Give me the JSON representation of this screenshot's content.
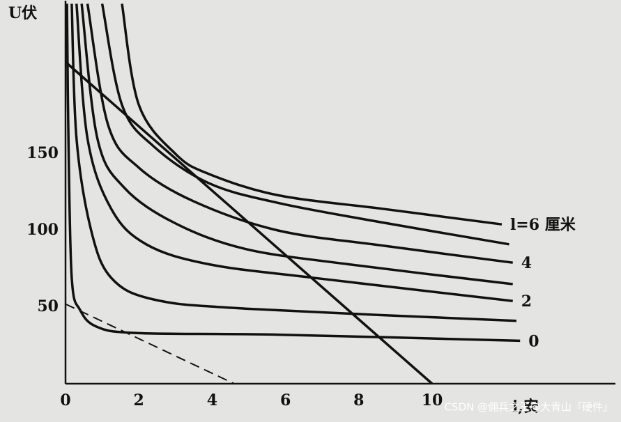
{
  "chart_data": {
    "type": "line",
    "y_label": "U伏",
    "x_label": "i,安",
    "watermark": "CSDN @佣兵之王@大青山『硬件』",
    "xlim": [
      0,
      15
    ],
    "ylim": [
      0,
      250
    ],
    "xticks": [
      0,
      2,
      4,
      6,
      8,
      10
    ],
    "yticks": [
      50,
      100,
      150
    ],
    "grid": false,
    "color": "#111111",
    "series": [
      {
        "name": "0",
        "color": "#111111",
        "x": [
          0.04,
          0.08,
          0.17,
          0.4,
          0.87,
          2.0,
          5.8,
          12.4
        ],
        "values": [
          248,
          160,
          69,
          48,
          37,
          33,
          32,
          28
        ]
      },
      {
        "color": "#111111",
        "x": [
          0.17,
          0.3,
          0.7,
          1.25,
          2.4,
          4.9,
          12.3
        ],
        "values": [
          248,
          160,
          100,
          69,
          55,
          49,
          41
        ]
      },
      {
        "name": "2",
        "color": "#111111",
        "x": [
          0.3,
          0.6,
          1.25,
          2.2,
          3.9,
          6.8,
          12.2
        ],
        "values": [
          248,
          160,
          114,
          91,
          78,
          69,
          54
        ]
      },
      {
        "color": "#111111",
        "x": [
          0.44,
          0.87,
          1.6,
          2.97,
          4.9,
          7.7,
          12.2
        ],
        "values": [
          248,
          160,
          128,
          105,
          88,
          78,
          65
        ]
      },
      {
        "name": "4",
        "color": "#111111",
        "x": [
          0.6,
          1.16,
          2.0,
          3.5,
          5.8,
          8.7,
          12.2
        ],
        "values": [
          248,
          169,
          141,
          119,
          100,
          90,
          79
        ]
      },
      {
        "color": "#111111",
        "x": [
          1.0,
          1.54,
          2.4,
          3.9,
          5.8,
          8.7,
          12.1
        ],
        "values": [
          248,
          182,
          155,
          131,
          118,
          105,
          91
        ]
      },
      {
        "name": "l=6 厘米",
        "color": "#111111",
        "x": [
          1.54,
          2.0,
          3.0,
          3.9,
          5.8,
          8.7,
          11.9
        ],
        "values": [
          248,
          182,
          150,
          137,
          123,
          114,
          104
        ]
      },
      {
        "color": "#111111",
        "x": [
          0,
          10
        ],
        "values": [
          210,
          0
        ]
      },
      {
        "color": "#111111",
        "dashed": true,
        "x": [
          0,
          4.6
        ],
        "values": [
          52,
          0
        ]
      }
    ]
  }
}
